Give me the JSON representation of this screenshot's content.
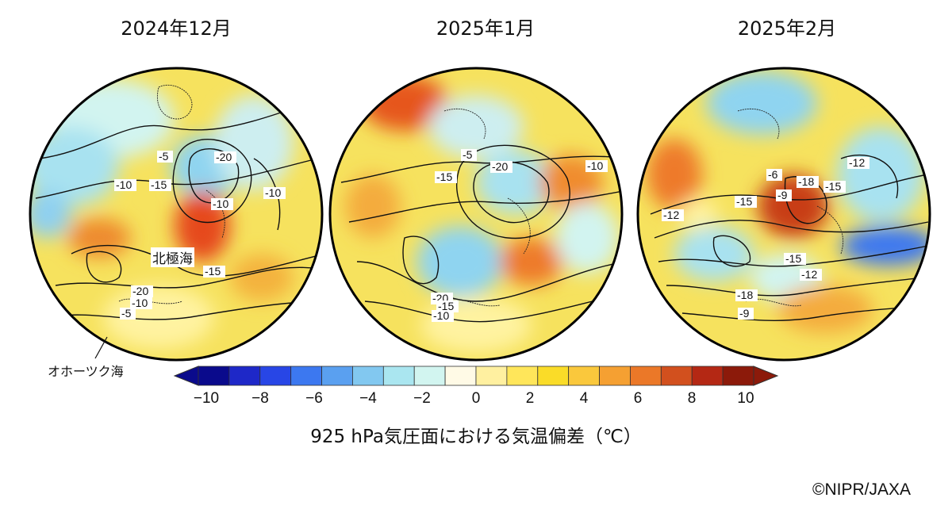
{
  "panels": [
    {
      "title": "2024年12月",
      "contour_labels": [
        "-5",
        "-20",
        "-10",
        "-15",
        "-10",
        "-10",
        "-15",
        "-20",
        "-10",
        "-5"
      ]
    },
    {
      "title": "2025年1月",
      "contour_labels": [
        "-5",
        "-20",
        "-15",
        "-10",
        "-20",
        "-15",
        "-10"
      ]
    },
    {
      "title": "2025年2月",
      "contour_labels": [
        "-6",
        "-18",
        "-15",
        "-9",
        "-12",
        "-12",
        "-15",
        "-15",
        "-12",
        "-18",
        "-9"
      ]
    }
  ],
  "map_labels": {
    "arctic_ocean": "北極海",
    "okhotsk_sea": "オホーツク海"
  },
  "colorbar": {
    "title": "925 hPa気圧面における気温偏差（℃）",
    "ticks": [
      "−10",
      "−8",
      "−6",
      "−4",
      "−2",
      "0",
      "2",
      "4",
      "6",
      "8",
      "10"
    ],
    "colors": [
      "#0a0a8c",
      "#1e28c8",
      "#2846e6",
      "#3c78f0",
      "#5aa0f0",
      "#82c8f0",
      "#aae6f0",
      "#d2f5f0",
      "#fffae6",
      "#fff0a0",
      "#ffe65a",
      "#fadc28",
      "#fac83c",
      "#f5a032",
      "#eb7828",
      "#d2501e",
      "#b42814",
      "#8c1a0a"
    ]
  },
  "credit": "©NIPR/JAXA"
}
